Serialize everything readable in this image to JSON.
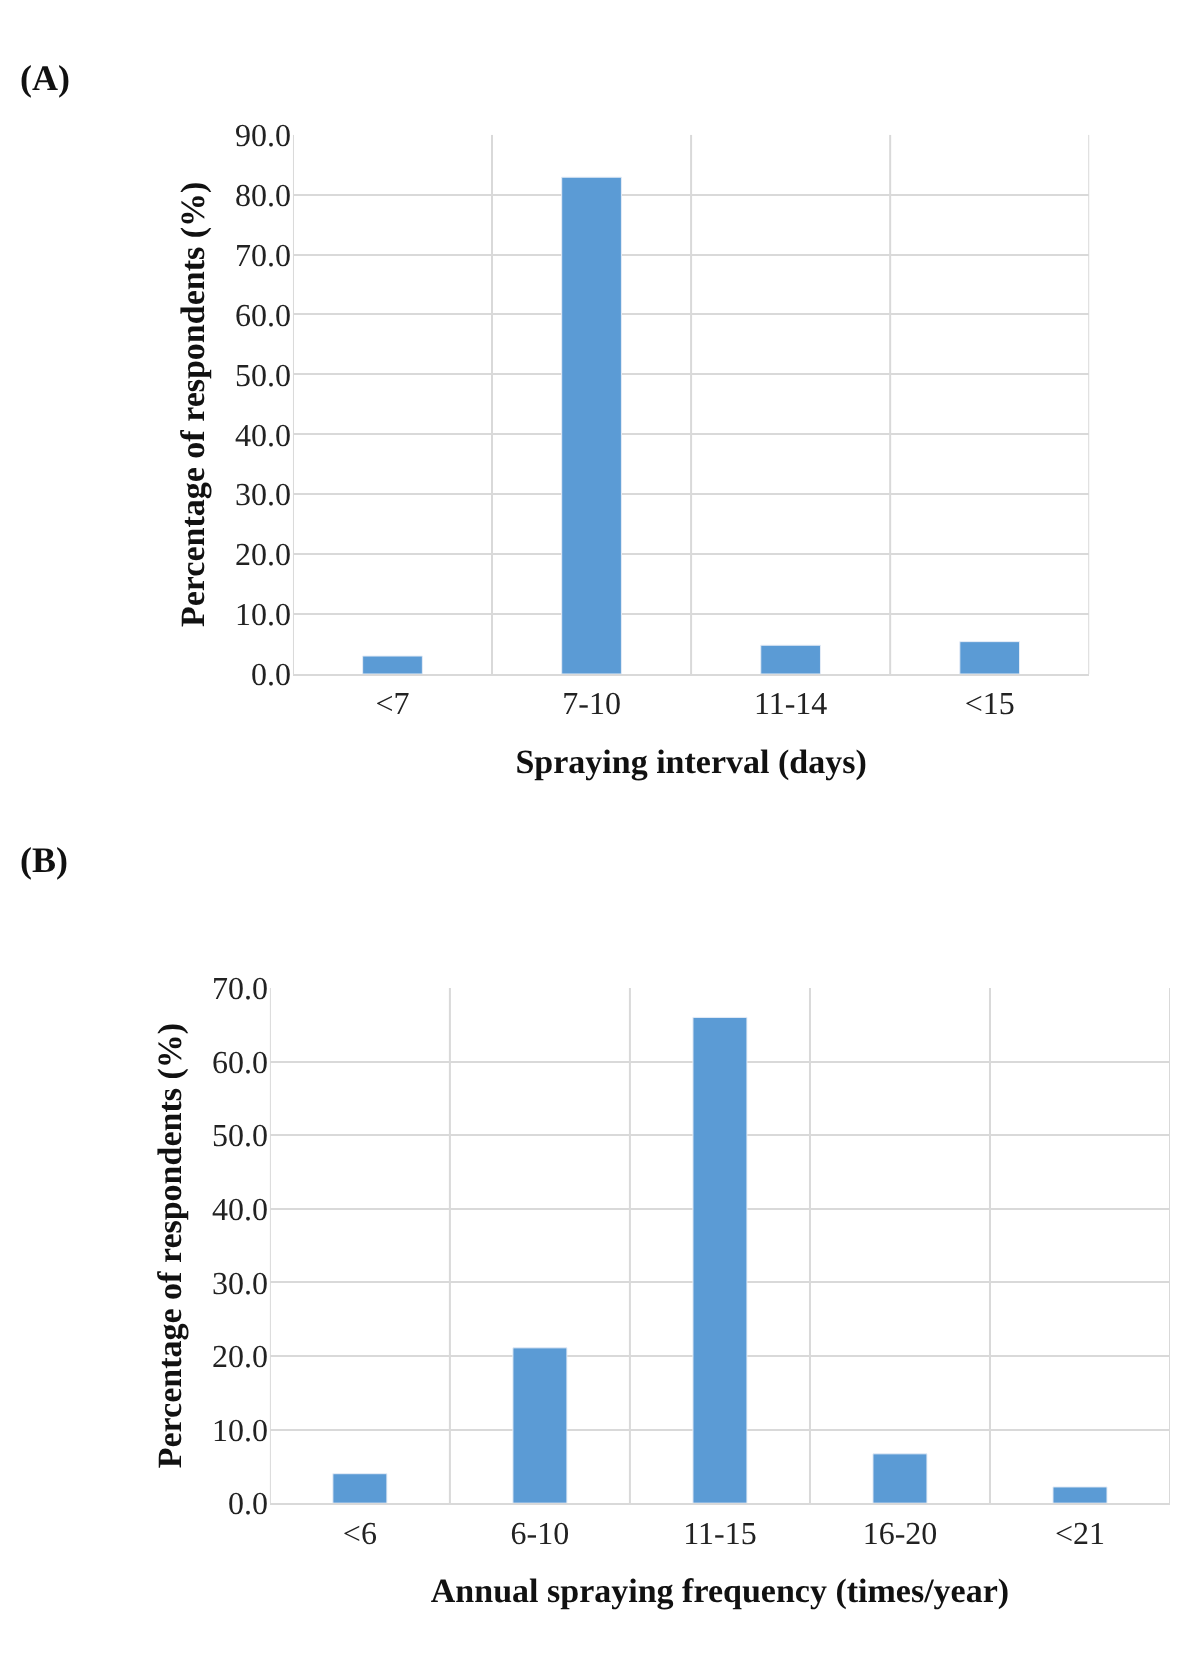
{
  "chart_data": [
    {
      "type": "bar",
      "title": "(A)",
      "xlabel": "Spraying interval (days)",
      "ylabel": "Percentage of respondents (%)",
      "categories": [
        "<7",
        "7-10",
        "11-14",
        "<15"
      ],
      "values": [
        3.0,
        82.9,
        4.8,
        5.4
      ],
      "color": "#5b9bd5",
      "ylim": [
        0,
        90
      ],
      "yticks": [
        {
          "value": 0,
          "label": "0.0"
        },
        {
          "value": 10,
          "label": "10.0"
        },
        {
          "value": 20,
          "label": "20.0"
        },
        {
          "value": 30,
          "label": "30.0"
        },
        {
          "value": 40,
          "label": "40.0"
        },
        {
          "value": 50,
          "label": "50.0"
        },
        {
          "value": 60,
          "label": "60.0"
        },
        {
          "value": 70,
          "label": "70.0"
        },
        {
          "value": 80,
          "label": "80.0"
        },
        {
          "value": 90,
          "label": "90.0"
        }
      ],
      "grid": true
    },
    {
      "type": "bar",
      "title": "(B)",
      "xlabel": "Annual spraying frequency (times/year)",
      "ylabel": "Percentage of respondents (%)",
      "categories": [
        "<6",
        "6-10",
        "11-15",
        "16-20",
        "<21"
      ],
      "values": [
        4.0,
        21.1,
        66.0,
        6.7,
        2.2
      ],
      "color": "#5b9bd5",
      "ylim": [
        0,
        70
      ],
      "yticks": [
        {
          "value": 0,
          "label": "0.0"
        },
        {
          "value": 10,
          "label": "10.0"
        },
        {
          "value": 20,
          "label": "20.0"
        },
        {
          "value": 30,
          "label": "30.0"
        },
        {
          "value": 40,
          "label": "40.0"
        },
        {
          "value": 50,
          "label": "50.0"
        },
        {
          "value": 60,
          "label": "60.0"
        },
        {
          "value": 70,
          "label": "70.0"
        }
      ],
      "grid": true
    }
  ]
}
